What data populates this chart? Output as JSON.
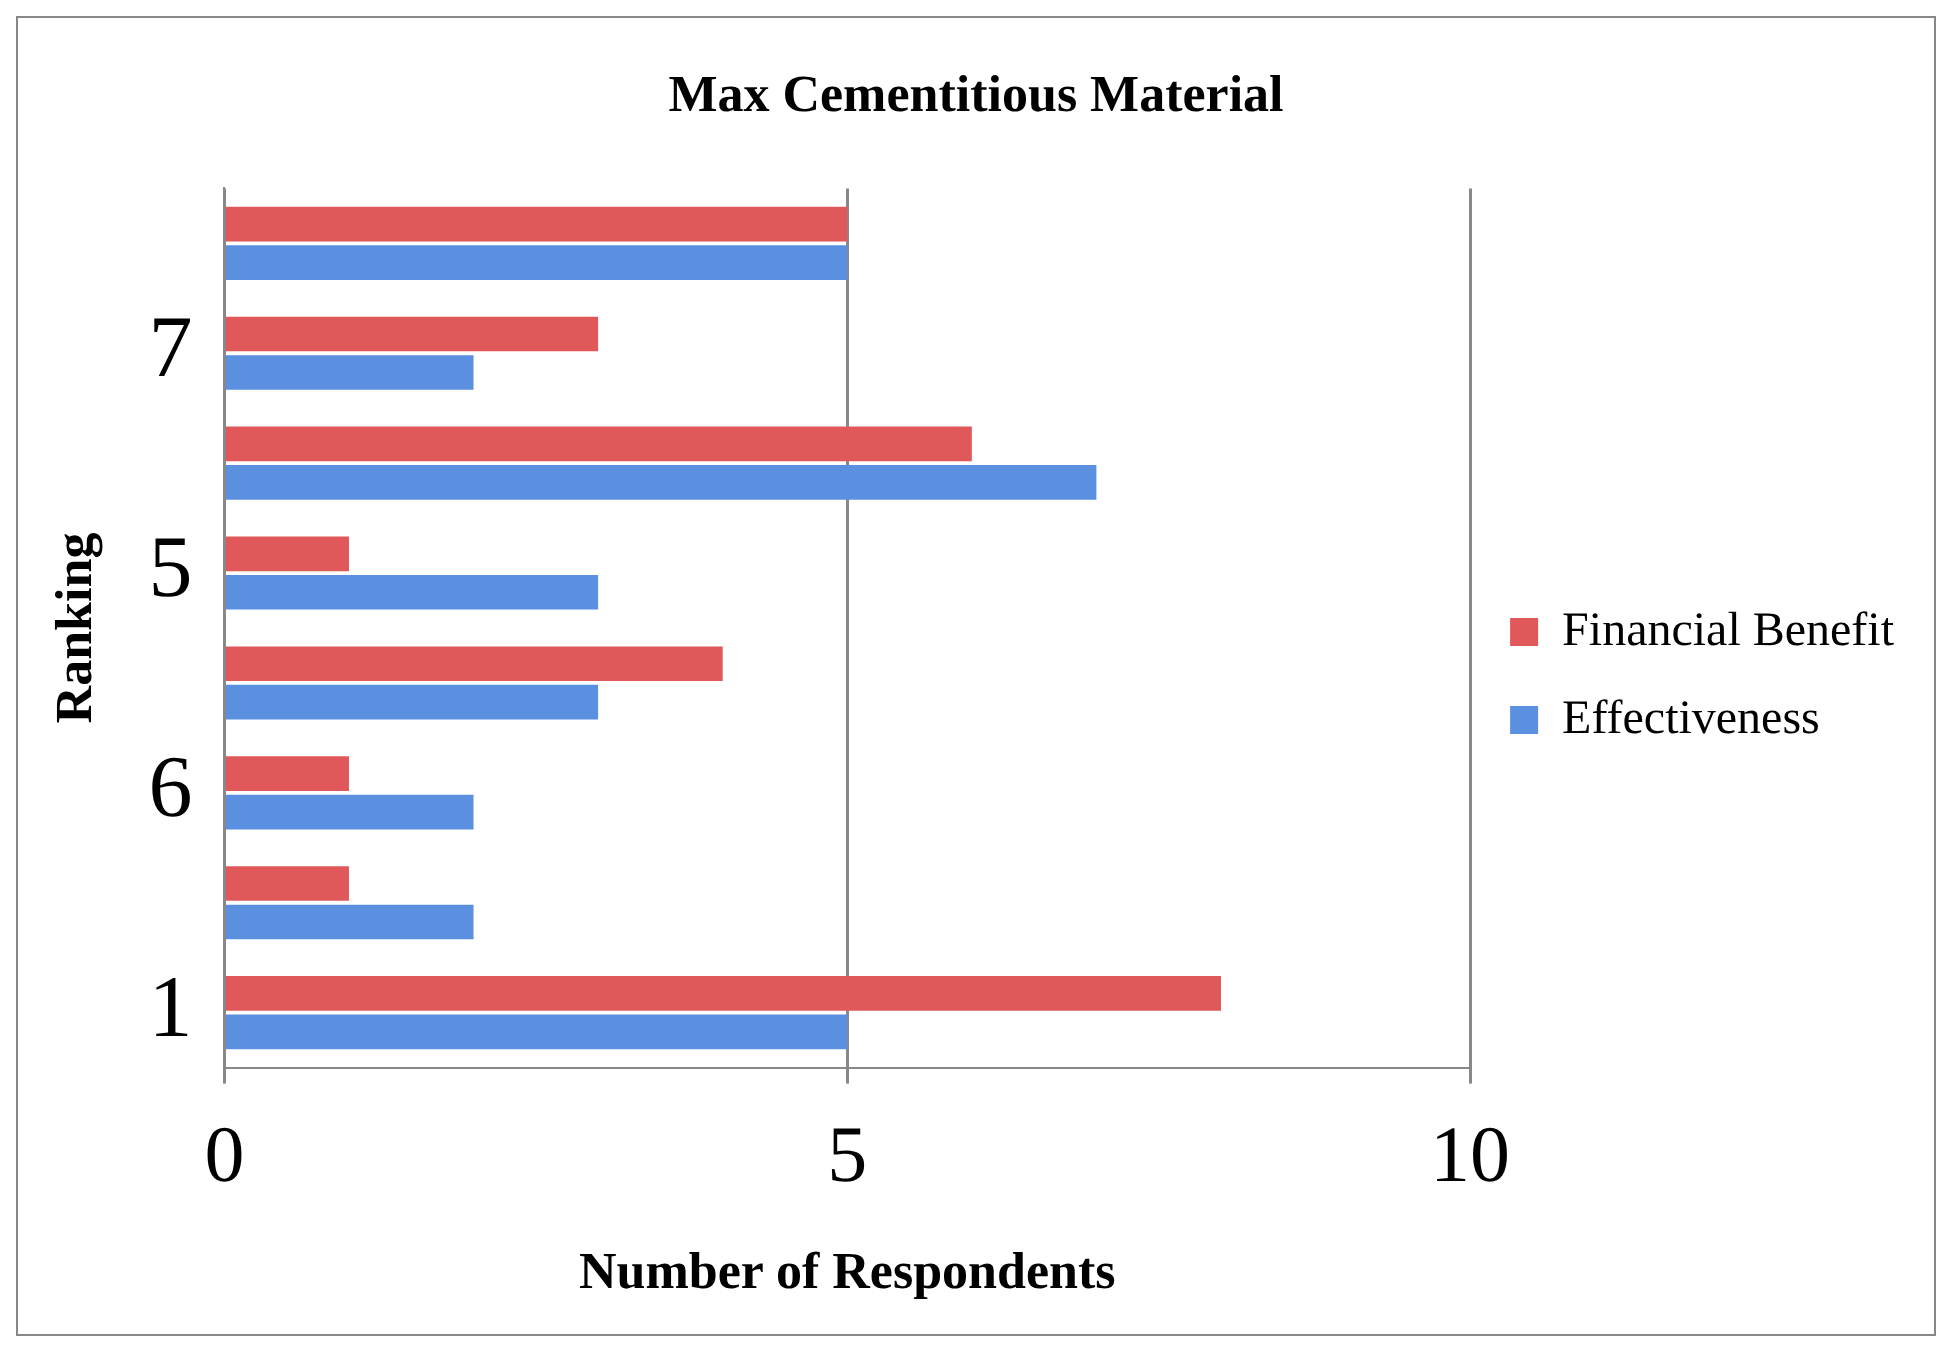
{
  "chart_data": {
    "type": "bar",
    "orientation": "horizontal",
    "title": "Max Cementitious Material",
    "xlabel": "Number of Respondents",
    "ylabel": "Ranking",
    "categories": [
      null,
      "7",
      null,
      "5",
      null,
      "6",
      null,
      "1"
    ],
    "series": [
      {
        "name": "Financial Benefit",
        "color": "#e0585a",
        "values": [
          5,
          3,
          6,
          1,
          4,
          1,
          1,
          8
        ]
      },
      {
        "name": "Effectiveness",
        "color": "#5b8fe0",
        "values": [
          5,
          2,
          7,
          3,
          3,
          2,
          2,
          5
        ]
      }
    ],
    "xlim": [
      0,
      10
    ],
    "xticks": [
      0,
      5,
      10
    ],
    "grid": "x",
    "legend": "right"
  }
}
